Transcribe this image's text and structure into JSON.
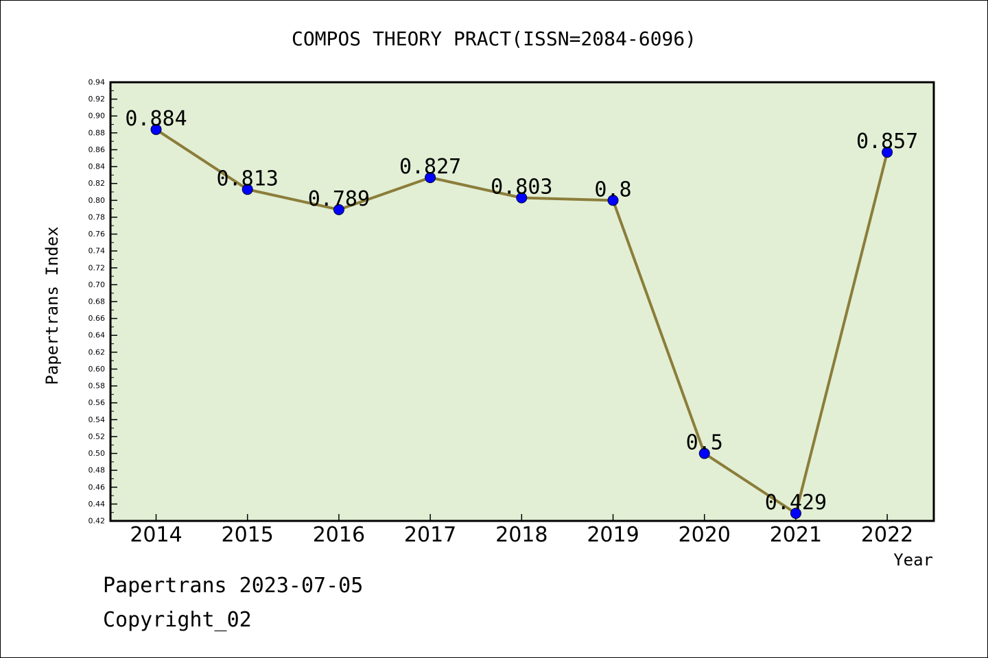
{
  "chart_data": {
    "type": "line",
    "title": "COMPOS THEORY PRACT(ISSN=2084-6096)",
    "xlabel": "Year",
    "ylabel": "Papertrans Index",
    "categories": [
      "2014",
      "2015",
      "2016",
      "2017",
      "2018",
      "2019",
      "2020",
      "2021",
      "2022"
    ],
    "series": [
      {
        "values": [
          0.884,
          0.813,
          0.789,
          0.827,
          0.803,
          0.8,
          0.5,
          0.429,
          0.857
        ],
        "labels": [
          "0.884",
          "0.813",
          "0.789",
          "0.827",
          "0.803",
          "0.8",
          "0.5",
          "0.429",
          "0.857"
        ]
      }
    ],
    "ylim": [
      0.42,
      0.94
    ],
    "yticks": [
      "0.42",
      "0.44",
      "0.46",
      "0.48",
      "0.50",
      "0.52",
      "0.54",
      "0.56",
      "0.58",
      "0.60",
      "0.62",
      "0.64",
      "0.66",
      "0.68",
      "0.70",
      "0.72",
      "0.74",
      "0.76",
      "0.78",
      "0.80",
      "0.82",
      "0.84",
      "0.86",
      "0.88",
      "0.90",
      "0.92",
      "0.94"
    ],
    "grid": false,
    "colors": {
      "plot_background": "#e2efd5",
      "line": "#8b7d3a",
      "marker": "#0000ff"
    }
  },
  "footer": {
    "line1": "Papertrans 2023-07-05",
    "line2": "Copyright_02"
  }
}
